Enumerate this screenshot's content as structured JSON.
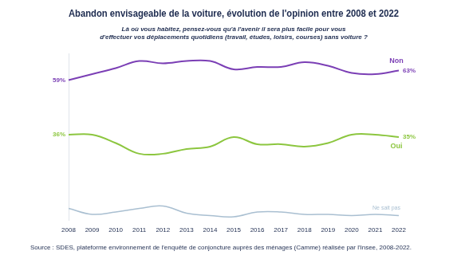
{
  "chart_data": {
    "type": "line",
    "title": "Abandon envisageable de la voiture, évolution de l'opinion entre 2008 et 2022",
    "subtitle": [
      "Là où vous habitez, pensez-vous qu'à l'avenir il sera plus facile pour vous",
      "d'effectuer vos déplacements quotidiens (travail, études, loisirs, courses) sans voiture ?"
    ],
    "source": "Source : SDES, plateforme environnement de l'enquête de conjoncture auprès des ménages (Camme) réalisée par l'Insee, 2008-2022.",
    "categories": [
      "2008",
      "2009",
      "2010",
      "2011",
      "2012",
      "2013",
      "2014",
      "2015",
      "2016",
      "2017",
      "2018",
      "2019",
      "2020",
      "2021",
      "2022"
    ],
    "series": [
      {
        "name": "Non",
        "color": "#7b3fb5",
        "values": [
          59,
          61.5,
          64,
          67,
          66,
          67,
          67,
          63.5,
          64.5,
          64.5,
          66.5,
          65,
          62,
          61.5,
          63
        ],
        "value_labels": [
          "59%",
          null,
          null,
          null,
          null,
          null,
          null,
          null,
          null,
          null,
          null,
          null,
          null,
          null,
          "63%"
        ]
      },
      {
        "name": "Oui",
        "color": "#8cc63f",
        "values": [
          36,
          36,
          32.5,
          28,
          28,
          30,
          31,
          35,
          32,
          32,
          31,
          32.5,
          36,
          36,
          35
        ],
        "value_labels": [
          "36%",
          null,
          null,
          null,
          null,
          null,
          null,
          null,
          null,
          null,
          null,
          null,
          null,
          null,
          "35%"
        ]
      },
      {
        "name": "Ne sait pas",
        "color": "#a9bfd1",
        "values": [
          5,
          2.5,
          3.5,
          5,
          6,
          3,
          2,
          1.5,
          3.5,
          3.5,
          2.5,
          2.5,
          2,
          2.5,
          2
        ]
      }
    ],
    "ylim": [
      0,
      70
    ],
    "yticks": [],
    "grid": false,
    "tick_labels": "x"
  }
}
